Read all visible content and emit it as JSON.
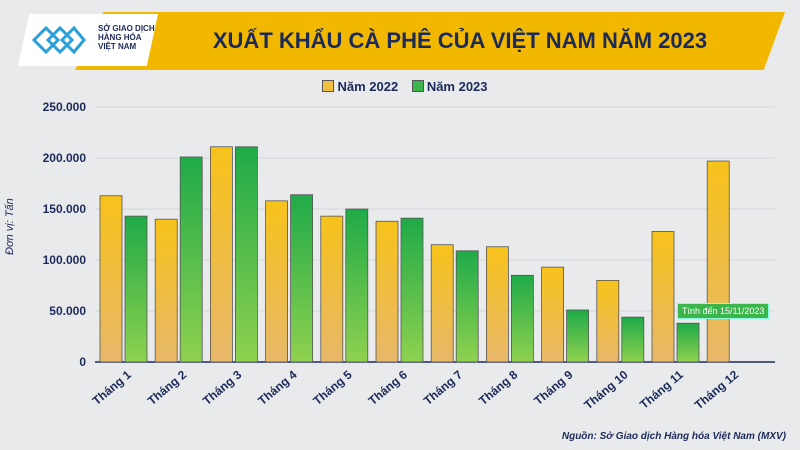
{
  "logo": {
    "lines": [
      "SỞ GIAO DỊCH",
      "HÀNG HÓA",
      "VIỆT NAM"
    ]
  },
  "chart_data": {
    "type": "bar",
    "title": "XUẤT KHẨU CÀ PHÊ CỦA VIỆT NAM NĂM 2023",
    "ylabel": "Đơn vị: Tấn",
    "ylim": [
      0,
      250000
    ],
    "yticks": [
      "0",
      "50.000",
      "100.000",
      "150.000",
      "200.000",
      "250.000"
    ],
    "categories": [
      "Tháng 1",
      "Tháng 2",
      "Tháng 3",
      "Tháng 4",
      "Tháng 5",
      "Tháng 6",
      "Tháng 7",
      "Tháng 8",
      "Tháng 9",
      "Tháng 10",
      "Tháng 11",
      "Tháng 12"
    ],
    "series": [
      {
        "name": "Năm 2022",
        "color": "#f2b800",
        "values": [
          163000,
          140000,
          211000,
          158000,
          143000,
          138000,
          115000,
          113000,
          93000,
          80000,
          128000,
          197000
        ]
      },
      {
        "name": "Năm 2023",
        "color": "#2db34a",
        "values": [
          143000,
          201000,
          211000,
          164000,
          150000,
          141000,
          109000,
          85000,
          51000,
          44000,
          38000,
          null
        ]
      }
    ],
    "annotation": "Tính đến 15/11/2023",
    "legend": "top",
    "grid": true,
    "source": "Nguồn: Sở Giao dịch Hàng hóa Việt Nam (MXV)"
  }
}
